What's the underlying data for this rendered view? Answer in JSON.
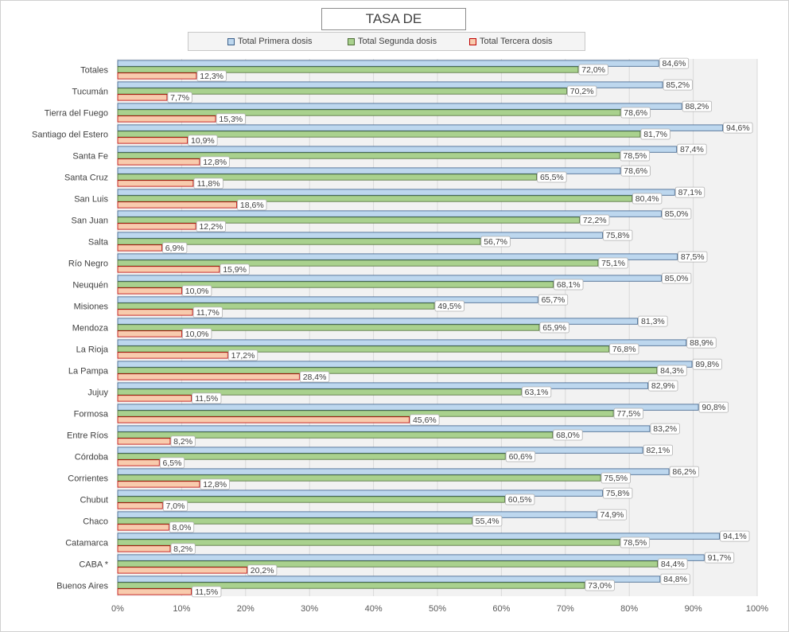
{
  "chart_data": {
    "type": "bar",
    "orientation": "horizontal",
    "title": "TASA DE VACUNACIÓN",
    "legend_position": "top",
    "grid": true,
    "xlim": [
      0,
      100
    ],
    "x_ticks": [
      "0%",
      "10%",
      "20%",
      "30%",
      "40%",
      "50%",
      "60%",
      "70%",
      "80%",
      "90%",
      "100%"
    ],
    "categories": [
      "Totales",
      "Tucumán",
      "Tierra del Fuego",
      "Santiago del Estero",
      "Santa Fe",
      "Santa Cruz",
      "San Luis",
      "San Juan",
      "Salta",
      "Río Negro",
      "Neuquén",
      "Misiones",
      "Mendoza",
      "La Rioja",
      "La Pampa",
      "Jujuy",
      "Formosa",
      "Entre Ríos",
      "Córdoba",
      "Corrientes",
      "Chubut",
      "Chaco",
      "Catamarca",
      "CABA *",
      "Buenos Aires"
    ],
    "series": [
      {
        "name": "Total Primera dosis",
        "color": "#bdd7ee",
        "stroke": "#3a5f8a",
        "values": [
          84.6,
          85.2,
          88.2,
          94.6,
          87.4,
          78.6,
          87.1,
          85.0,
          75.8,
          87.5,
          85.0,
          65.7,
          81.3,
          88.9,
          89.8,
          82.9,
          90.8,
          83.2,
          82.1,
          86.2,
          75.8,
          74.9,
          94.1,
          91.7,
          84.8
        ],
        "labels": [
          "84,6%",
          "85,2%",
          "88,2%",
          "94,6%",
          "87,4%",
          "78,6%",
          "87,1%",
          "85,0%",
          "75,8%",
          "87,5%",
          "85,0%",
          "65,7%",
          "81,3%",
          "88,9%",
          "89,8%",
          "82,9%",
          "90,8%",
          "83,2%",
          "82,1%",
          "86,2%",
          "75,8%",
          "74,9%",
          "94,1%",
          "91,7%",
          "84,8%"
        ]
      },
      {
        "name": "Total Segunda dosis",
        "color": "#a9d18e",
        "stroke": "#4e6e36",
        "values": [
          72.0,
          70.2,
          78.6,
          81.7,
          78.5,
          65.5,
          80.4,
          72.2,
          56.7,
          75.1,
          68.1,
          49.5,
          65.9,
          76.8,
          84.3,
          63.1,
          77.5,
          68.0,
          60.6,
          75.5,
          60.5,
          55.4,
          78.5,
          84.4,
          73.0
        ],
        "labels": [
          "72,0%",
          "70,2%",
          "78,6%",
          "81,7%",
          "78,5%",
          "65,5%",
          "80,4%",
          "72,2%",
          "56,7%",
          "75,1%",
          "68,1%",
          "49,5%",
          "65,9%",
          "76,8%",
          "84,3%",
          "63,1%",
          "77,5%",
          "68,0%",
          "60,6%",
          "75,5%",
          "60,5%",
          "55,4%",
          "78,5%",
          "84,4%",
          "73,0%"
        ]
      },
      {
        "name": "Total Tercera dosis",
        "color": "#f8cbad",
        "stroke": "#c00000",
        "values": [
          12.3,
          7.7,
          15.3,
          10.9,
          12.8,
          11.8,
          18.6,
          12.2,
          6.9,
          15.9,
          10.0,
          11.7,
          10.0,
          17.2,
          28.4,
          11.5,
          45.6,
          8.2,
          6.5,
          12.8,
          7.0,
          8.0,
          8.2,
          20.2,
          11.5
        ],
        "labels": [
          "12,3%",
          "7,7%",
          "15,3%",
          "10,9%",
          "12,8%",
          "11,8%",
          "18,6%",
          "12,2%",
          "6,9%",
          "15,9%",
          "10,0%",
          "11,7%",
          "10,0%",
          "17,2%",
          "28,4%",
          "11,5%",
          "45,6%",
          "8,2%",
          "6,5%",
          "12,8%",
          "7,0%",
          "8,0%",
          "8,2%",
          "20,2%",
          "11,5%"
        ]
      }
    ]
  }
}
